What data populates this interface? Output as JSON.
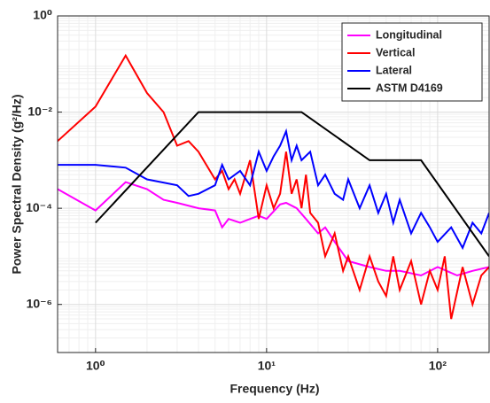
{
  "chart_data": {
    "type": "line",
    "log_x": true,
    "log_y": true,
    "grid": true,
    "legend": "top-right",
    "xlabel": "Frequency (Hz)",
    "ylabel": "Power Spectral Density (g²/Hz)",
    "xlim": [
      0.6,
      200
    ],
    "ylim": [
      1e-07,
      1
    ],
    "xticks": [
      {
        "value": 1,
        "label": "10⁰"
      },
      {
        "value": 10,
        "label": "10¹"
      },
      {
        "value": 100,
        "label": "10²"
      }
    ],
    "yticks": [
      {
        "value": 1e-06,
        "label": "10⁻⁶"
      },
      {
        "value": 0.0001,
        "label": "10⁻⁴"
      },
      {
        "value": 0.01,
        "label": "10⁻²"
      },
      {
        "value": 1,
        "label": "10⁰"
      }
    ],
    "series": [
      {
        "name": "Longitudinal",
        "color": "#ff00ff",
        "x": [
          0.6,
          1,
          1.5,
          2,
          2.5,
          3,
          4,
          5,
          5.5,
          6,
          7,
          8,
          9,
          10,
          12,
          13,
          15,
          17,
          20,
          22,
          25,
          30,
          40,
          50,
          60,
          80,
          100,
          130,
          160,
          200
        ],
        "values": [
          0.00025,
          9e-05,
          0.00035,
          0.00025,
          0.00015,
          0.00013,
          0.0001,
          9e-05,
          4e-05,
          6e-05,
          5e-05,
          6e-05,
          7e-05,
          6e-05,
          0.00012,
          0.00013,
          0.0001,
          6e-05,
          3e-05,
          4e-05,
          2e-05,
          8e-06,
          6e-06,
          5e-06,
          5e-06,
          4e-06,
          6e-06,
          4e-06,
          5e-06,
          6e-06
        ]
      },
      {
        "name": "Vertical",
        "color": "#ff0000",
        "x": [
          0.6,
          1,
          1.5,
          2,
          2.5,
          3,
          3.5,
          4,
          5,
          5.5,
          6,
          6.5,
          7,
          8,
          9,
          10,
          11,
          12,
          13,
          14,
          15,
          16,
          17,
          18,
          20,
          22,
          25,
          28,
          30,
          35,
          40,
          45,
          50,
          55,
          60,
          70,
          80,
          90,
          100,
          110,
          120,
          140,
          160,
          180,
          200
        ],
        "values": [
          0.0025,
          0.013,
          0.15,
          0.025,
          0.01,
          0.002,
          0.0025,
          0.0015,
          0.0004,
          0.0006,
          0.00025,
          0.0004,
          0.0002,
          0.001,
          6e-05,
          0.0003,
          0.0001,
          0.0002,
          0.0015,
          0.0002,
          0.0004,
          0.0001,
          0.0005,
          8e-05,
          5e-05,
          1e-05,
          3e-05,
          5e-06,
          1e-05,
          2e-06,
          1e-05,
          3e-06,
          1.5e-06,
          1e-05,
          2e-06,
          8e-06,
          1e-06,
          5e-06,
          2e-06,
          1e-05,
          5e-07,
          6e-06,
          1e-06,
          4e-06,
          6e-06
        ]
      },
      {
        "name": "Lateral",
        "color": "#0000ff",
        "x": [
          0.6,
          1,
          1.5,
          2,
          3,
          3.5,
          4,
          5,
          5.5,
          6,
          7,
          8,
          9,
          10,
          11,
          12,
          13,
          14,
          15,
          16,
          18,
          20,
          22,
          25,
          28,
          30,
          35,
          40,
          45,
          50,
          55,
          60,
          70,
          80,
          90,
          100,
          120,
          140,
          160,
          180,
          200
        ],
        "values": [
          0.0008,
          0.0008,
          0.0007,
          0.0004,
          0.0003,
          0.00018,
          0.0002,
          0.0003,
          0.0008,
          0.0004,
          0.0006,
          0.0003,
          0.0015,
          0.0006,
          0.0012,
          0.002,
          0.004,
          0.001,
          0.002,
          0.001,
          0.0015,
          0.0003,
          0.0005,
          0.0002,
          0.00015,
          0.0004,
          0.0001,
          0.0003,
          8e-05,
          0.0002,
          5e-05,
          0.00015,
          3e-05,
          8e-05,
          4e-05,
          2e-05,
          4e-05,
          1.5e-05,
          5e-05,
          3e-05,
          8e-05
        ]
      },
      {
        "name": "ASTM D4169",
        "color": "#000000",
        "x": [
          1,
          4,
          16,
          40,
          80,
          200
        ],
        "values": [
          5e-05,
          0.01,
          0.01,
          0.001,
          0.001,
          1e-05
        ]
      }
    ]
  }
}
